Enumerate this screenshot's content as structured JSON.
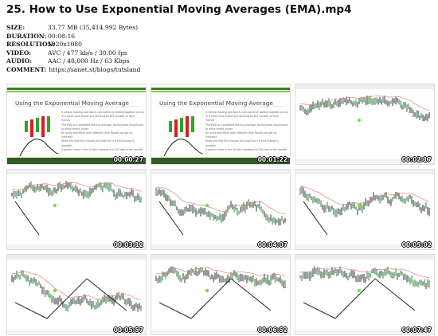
{
  "header": {
    "title": "25. How to Use Exponential Moving Averages (EMA).mp4"
  },
  "meta": [
    {
      "label": "SIZE:",
      "value": "33.77 MB (35,414,992 Bytes)"
    },
    {
      "label": "DURATION:",
      "value": "00:08:16"
    },
    {
      "label": "RESOLUTION:",
      "value": "1920x1080"
    },
    {
      "label": "VIDEO:",
      "value": "AVC / 477 kb/s / 30.00 fps"
    },
    {
      "label": "AUDIO:",
      "value": "AAC / 48,000 Hz / 63 Kbps"
    },
    {
      "label": "COMMENT:",
      "value": "https://sanet.st/blogs/tutsland"
    }
  ],
  "slide": {
    "title": "Using the Exponential Moving Average",
    "bullets": [
      "A simple moving average is calculated by adding together prices in a given time frame and dividing by the number of time frames",
      "The EMA is a weighted moving average, giving more importance to more recent prices",
      "By using two EMAs with different time frames we get an indicator",
      "When the fast line crosses the slow line a trend change is possible",
      "A golden cross is the 50 day crossing the 200 day to the upside"
    ]
  },
  "thumbnails": [
    {
      "kind": "slide",
      "time": "00:00:27"
    },
    {
      "kind": "slide",
      "time": "00:01:22"
    },
    {
      "kind": "chart",
      "time": "00:02:17"
    },
    {
      "kind": "chart",
      "time": "00:03:12"
    },
    {
      "kind": "chart",
      "time": "00:04:07"
    },
    {
      "kind": "chart",
      "time": "00:05:02"
    },
    {
      "kind": "chart",
      "time": "00:05:57"
    },
    {
      "kind": "chart",
      "time": "00:06:52"
    },
    {
      "kind": "chart",
      "time": "00:07:47"
    }
  ]
}
